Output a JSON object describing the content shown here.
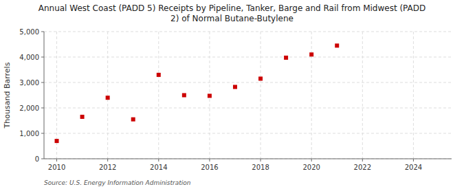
{
  "chart_data": {
    "type": "scatter",
    "title": "Annual West Coast (PADD 5) Receipts by Pipeline, Tanker, Barge and Rail from Midwest (PADD\n2) of Normal Butane-Butylene",
    "ylabel": "Thousand Barrels",
    "source": "Source: U.S. Energy Information Administration",
    "x": [
      2010,
      2011,
      2012,
      2013,
      2014,
      2015,
      2016,
      2017,
      2018,
      2019,
      2020,
      2021
    ],
    "values": [
      700,
      1650,
      2400,
      1550,
      3300,
      2500,
      2475,
      2825,
      3150,
      3975,
      4100,
      4450
    ],
    "color": "#cc0000",
    "marker": "square",
    "xlim": [
      2009.5,
      2025.5
    ],
    "ylim": [
      0,
      5000
    ],
    "xticks": [
      2010,
      2012,
      2014,
      2016,
      2018,
      2020,
      2022,
      2024
    ],
    "yticks": [
      0,
      {
        "value": 1000,
        "label": "1,000"
      },
      {
        "value": 2000,
        "label": "2,000"
      },
      {
        "value": 3000,
        "label": "3,000"
      },
      {
        "value": 4000,
        "label": "4,000"
      },
      {
        "value": 5000,
        "label": "5,000"
      }
    ],
    "grid": true
  }
}
